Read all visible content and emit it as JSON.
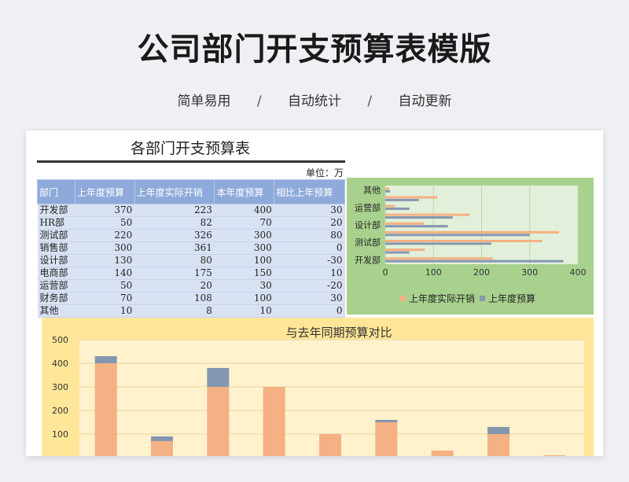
{
  "page": {
    "title": "公司部门开支预算表模版",
    "features": [
      "简单易用",
      "自动统计",
      "自动更新"
    ],
    "separator": "/"
  },
  "sheet": {
    "title": "各部门开支预算表",
    "unit": "单位：万",
    "columns": [
      "部门",
      "上年度预算",
      "上年度实际开销",
      "本年度预算",
      "相比上年预算"
    ],
    "rows": [
      [
        "开发部",
        "370",
        "223",
        "400",
        "30"
      ],
      [
        "HR部",
        "50",
        "82",
        "70",
        "20"
      ],
      [
        "测试部",
        "220",
        "326",
        "300",
        "80"
      ],
      [
        "销售部",
        "300",
        "361",
        "300",
        "0"
      ],
      [
        "设计部",
        "130",
        "80",
        "100",
        "-30"
      ],
      [
        "电商部",
        "140",
        "175",
        "150",
        "10"
      ],
      [
        "运营部",
        "50",
        "20",
        "30",
        "-20"
      ],
      [
        "财务部",
        "70",
        "108",
        "100",
        "30"
      ],
      [
        "其他",
        "10",
        "8",
        "10",
        "0"
      ]
    ]
  },
  "chart_data": [
    {
      "type": "bar",
      "orientation": "horizontal",
      "categories": [
        "开发部",
        "HR部",
        "测试部",
        "销售部",
        "设计部",
        "电商部",
        "运营部",
        "财务部",
        "其他"
      ],
      "axis_category_labels": [
        "开发部",
        "测试部",
        "设计部",
        "运营部",
        "其他"
      ],
      "series": [
        {
          "name": "上年度实际开销",
          "color": "#f4b183",
          "values": [
            223,
            82,
            326,
            361,
            80,
            175,
            20,
            108,
            8
          ]
        },
        {
          "name": "上年度预算",
          "color": "#8497b0",
          "values": [
            370,
            50,
            220,
            300,
            130,
            140,
            50,
            70,
            10
          ]
        }
      ],
      "xticks": [
        0,
        100,
        200,
        300,
        400
      ],
      "xlim": [
        0,
        400
      ],
      "grid": true,
      "legend": "bottom",
      "background": "#a9d18e",
      "plot_background": "#e2efda"
    },
    {
      "type": "bar",
      "stacked": true,
      "title": "与去年同期预算对比",
      "categories": [
        "开发部",
        "HR部",
        "测试部",
        "销售部",
        "设计部",
        "电商部",
        "运营部",
        "财务部",
        "其他"
      ],
      "series": [
        {
          "color": "#f4b183",
          "values": [
            400,
            70,
            300,
            300,
            100,
            150,
            30,
            100,
            10
          ]
        },
        {
          "color": "#8497b0",
          "values": [
            30,
            20,
            80,
            0,
            0,
            10,
            0,
            30,
            0
          ]
        }
      ],
      "yticks": [
        100,
        200,
        300,
        400,
        500
      ],
      "ylim": [
        0,
        500
      ],
      "grid": true,
      "background": "#ffe699",
      "plot_background": "#fff2cc"
    }
  ]
}
